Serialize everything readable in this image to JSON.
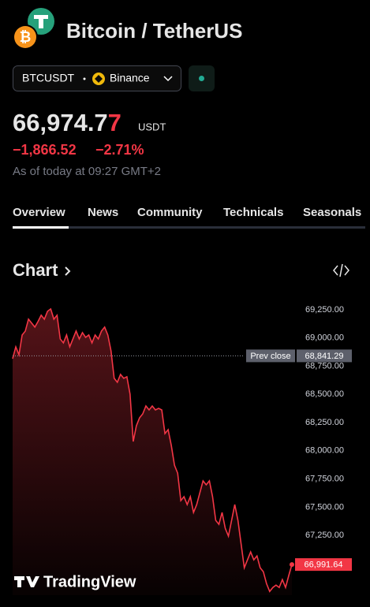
{
  "header": {
    "title": "Bitcoin / TetherUS",
    "symbol": "BTCUSDT",
    "exchange": "Binance"
  },
  "quote": {
    "price_main": "66,974.7",
    "price_last": "7",
    "currency": "USDT",
    "change": "−1,866.52",
    "change_percent": "−2.71%",
    "as_of": "As of today at 09:27 GMT+2"
  },
  "tabs": [
    "Overview",
    "News",
    "Community",
    "Technicals",
    "Seasonals"
  ],
  "section_title": "Chart",
  "brand": "TradingView",
  "chart_data": {
    "type": "line",
    "color": "#f23645",
    "series": [
      {
        "name": "BTCUSDT",
        "color": "#f23645",
        "values": [
          68816,
          68921,
          68851,
          69026,
          69061,
          69166,
          69131,
          69096,
          69145,
          69201,
          69166,
          69236,
          69257,
          69166,
          69201,
          68991,
          68956,
          69026,
          68921,
          68991,
          69061,
          68991,
          69047,
          69005,
          69026,
          68956,
          69026,
          68991,
          69061,
          69096,
          69026,
          68886,
          68642,
          68607,
          68677,
          68642,
          68656,
          68502,
          68082,
          68222,
          68292,
          68327,
          68397,
          68362,
          68397,
          68362,
          68376,
          68362,
          68152,
          68187,
          68047,
          67872,
          67802,
          67558,
          67593,
          67523,
          67593,
          67453,
          67523,
          67628,
          67733,
          67698,
          67733,
          67593,
          67383,
          67348,
          67453,
          67313,
          67243,
          67383,
          67523,
          67383,
          67173,
          66963,
          67033,
          67103,
          67033,
          67068,
          66963,
          66928,
          66823,
          66753,
          66788,
          66809,
          66788,
          66858,
          66788,
          66893,
          66991.64
        ]
      }
    ],
    "last_label": "66,991.64",
    "prev_close": {
      "label": "Prev close",
      "value": 68841.29,
      "value_label": "68,841.29"
    },
    "ylim": [
      66720,
      69375
    ],
    "yticks": [
      {
        "value": 67250,
        "label": "67,250.00"
      },
      {
        "value": 67500,
        "label": "67,500.00"
      },
      {
        "value": 67750,
        "label": "67,750.00"
      },
      {
        "value": 68000,
        "label": "68,000.00"
      },
      {
        "value": 68250,
        "label": "68,250.00"
      },
      {
        "value": 68500,
        "label": "68,500.00"
      },
      {
        "value": 68750,
        "label": "68,750.00"
      },
      {
        "value": 69000,
        "label": "69,000.00"
      },
      {
        "value": 69250,
        "label": "69,250.00"
      }
    ]
  }
}
